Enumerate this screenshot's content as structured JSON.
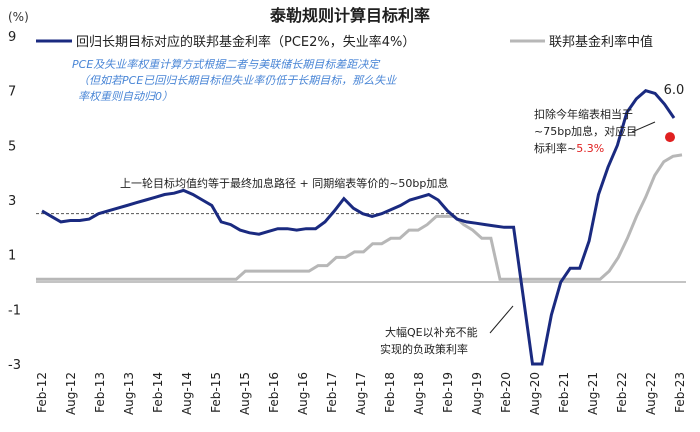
{
  "chart_data": {
    "type": "line",
    "title": "泰勒规则计算目标利率",
    "unit_label": "(%)",
    "ylim": [
      -3,
      9
    ],
    "yticks": [
      "9",
      "7",
      "5",
      "3",
      "1",
      "-1",
      "-3"
    ],
    "xtick_labels": [
      "Feb-12",
      "Aug-12",
      "Feb-13",
      "Aug-13",
      "Feb-14",
      "Aug-14",
      "Feb-15",
      "Aug-15",
      "Feb-16",
      "Aug-16",
      "Feb-17",
      "Aug-17",
      "Feb-18",
      "Aug-18",
      "Feb-19",
      "Aug-19",
      "Feb-20",
      "Aug-20",
      "Feb-21",
      "Aug-21",
      "Feb-22",
      "Aug-22",
      "Feb-23"
    ],
    "series": [
      {
        "name": "回归长期目标对应的联邦基金利率（PCE2%，失业率4%）",
        "color": "#1a2a80",
        "values": [
          2.6,
          2.4,
          2.2,
          2.25,
          2.25,
          2.3,
          2.5,
          2.6,
          2.7,
          2.8,
          2.9,
          3.0,
          3.1,
          3.2,
          3.25,
          3.35,
          3.2,
          3.0,
          2.8,
          2.2,
          2.1,
          1.9,
          1.8,
          1.75,
          1.85,
          1.95,
          1.95,
          1.9,
          1.95,
          1.95,
          2.2,
          2.6,
          3.05,
          2.7,
          2.5,
          2.4,
          2.5,
          2.65,
          2.8,
          3.0,
          3.1,
          3.2,
          3.0,
          2.6,
          2.3,
          2.2,
          2.15,
          2.1,
          2.05,
          2.0,
          2.0,
          -0.5,
          -3.0,
          -3.0,
          -1.2,
          0.0,
          0.5,
          0.5,
          1.5,
          3.2,
          4.2,
          5.0,
          6.2,
          6.7,
          7.0,
          6.9,
          6.5,
          6.0
        ]
      },
      {
        "name": "联邦基金利率中值",
        "color": "#b7b7b7",
        "values": [
          0.1,
          0.1,
          0.1,
          0.1,
          0.1,
          0.1,
          0.1,
          0.1,
          0.1,
          0.1,
          0.1,
          0.1,
          0.1,
          0.1,
          0.1,
          0.1,
          0.1,
          0.1,
          0.1,
          0.1,
          0.1,
          0.1,
          0.1,
          0.4,
          0.4,
          0.4,
          0.4,
          0.4,
          0.4,
          0.4,
          0.4,
          0.6,
          0.6,
          0.9,
          0.9,
          1.1,
          1.1,
          1.4,
          1.4,
          1.6,
          1.6,
          1.9,
          1.9,
          2.1,
          2.4,
          2.4,
          2.4,
          2.1,
          1.9,
          1.6,
          1.6,
          0.1,
          0.1,
          0.1,
          0.1,
          0.1,
          0.1,
          0.1,
          0.1,
          0.1,
          0.1,
          0.1,
          0.1,
          0.4,
          0.9,
          1.6,
          2.4,
          3.1,
          3.9,
          4.4,
          4.6,
          4.65
        ]
      }
    ],
    "end_label": "6.0",
    "reference_line": {
      "value": 2.5,
      "label": "上一轮目标均值约等于最终加息路径 + 同期缩表等价的~50bp加息"
    },
    "highlight_point": {
      "value": 5.3,
      "color": "#e02020"
    },
    "annotations": {
      "blue_line1": "PCE及失业率权重计算方式根据二者与美联储长期目标差距决定",
      "blue_line2": "（但如若PCE已回归长期目标但失业率仍低于长期目标，那么失业",
      "blue_line3": "率权重则自动归0）",
      "qe_line1": "大幅QE以补充不能",
      "qe_line2": "实现的负政策利率",
      "right_line1": "扣除今年缩表相当于",
      "right_line2": "~75bp加息，对应目",
      "right_line3_prefix": "标利率~",
      "right_line3_value": "5.3%"
    }
  }
}
